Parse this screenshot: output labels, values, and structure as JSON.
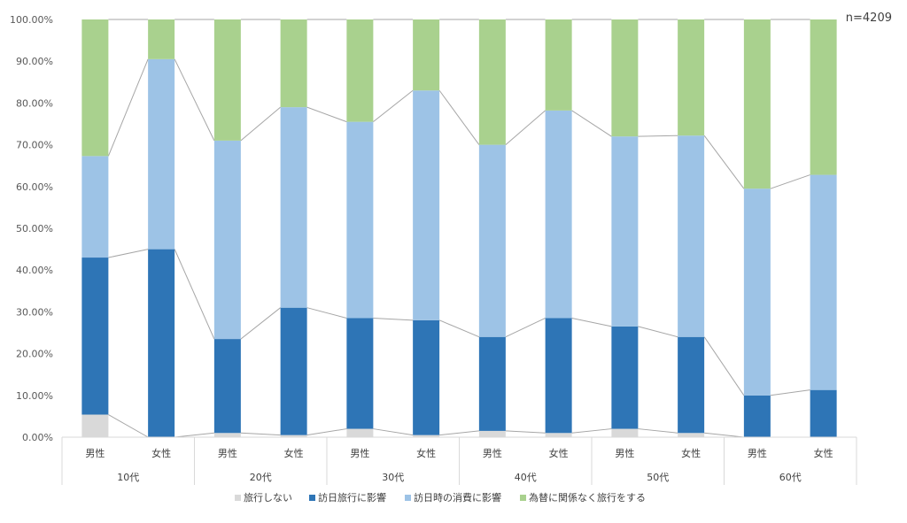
{
  "chart_data": {
    "type": "bar",
    "stacked": true,
    "percent": true,
    "note": "n=4209",
    "title": "",
    "xlabel": "",
    "ylabel": "",
    "ylim": [
      0,
      100
    ],
    "yticks": [
      "0.00%",
      "10.00%",
      "20.00%",
      "30.00%",
      "40.00%",
      "50.00%",
      "60.00%",
      "70.00%",
      "80.00%",
      "90.00%",
      "100.00%"
    ],
    "groups": [
      {
        "label": "10代",
        "categories": [
          "男性",
          "女性"
        ]
      },
      {
        "label": "20代",
        "categories": [
          "男性",
          "女性"
        ]
      },
      {
        "label": "30代",
        "categories": [
          "男性",
          "女性"
        ]
      },
      {
        "label": "40代",
        "categories": [
          "男性",
          "女性"
        ]
      },
      {
        "label": "50代",
        "categories": [
          "男性",
          "女性"
        ]
      },
      {
        "label": "60代",
        "categories": [
          "男性",
          "女性"
        ]
      }
    ],
    "series": [
      {
        "name": "旅行しない",
        "color": "#d9d9d9",
        "values": [
          5.4,
          0.0,
          1.0,
          0.5,
          2.0,
          0.5,
          1.5,
          1.0,
          2.0,
          1.0,
          0.0,
          0.0
        ]
      },
      {
        "name": "訪日旅行に影響",
        "color": "#2e75b6",
        "values": [
          37.6,
          45.0,
          22.5,
          30.5,
          26.5,
          27.5,
          22.5,
          27.5,
          24.5,
          23.0,
          10.0,
          11.3
        ]
      },
      {
        "name": "訪日時の消費に影響",
        "color": "#9dc3e6",
        "values": [
          24.3,
          45.5,
          47.5,
          48.0,
          47.0,
          55.0,
          46.0,
          49.7,
          45.5,
          48.2,
          49.5,
          51.5
        ]
      },
      {
        "name": "為替に関係なく旅行をする",
        "color": "#a9d18e",
        "values": [
          32.7,
          9.5,
          29.0,
          21.0,
          24.5,
          17.0,
          30.0,
          21.8,
          28.0,
          27.8,
          40.5,
          37.2
        ]
      }
    ],
    "grid": false,
    "legend": "bottom",
    "colors": {
      "connector": "#a6a6a6",
      "axis": "#d9d9d9"
    }
  }
}
